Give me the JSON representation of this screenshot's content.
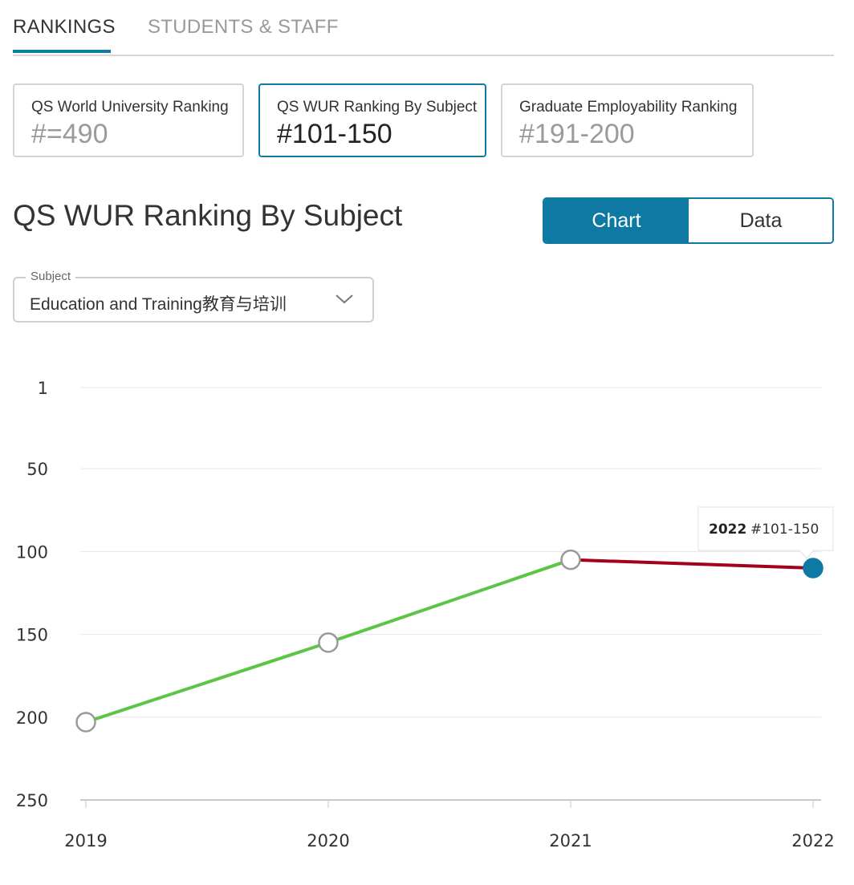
{
  "tabs": [
    {
      "label": "RANKINGS"
    },
    {
      "label": "STUDENTS & STAFF"
    }
  ],
  "cards": [
    {
      "label": "QS World University Ranking",
      "value": "#=490"
    },
    {
      "label": "QS WUR Ranking By Subject",
      "value": "#101-150"
    },
    {
      "label": "Graduate Employability Ranking",
      "value": "#191-200"
    }
  ],
  "section_title": "QS WUR Ranking By Subject",
  "view_toggle": {
    "chart_label": "Chart",
    "data_label": "Data"
  },
  "subject_select": {
    "legend": "Subject",
    "value": "Education and Training教育与培训"
  },
  "colors": {
    "accent": "#0e7aa3",
    "rise": "#5cc545",
    "decline": "#a3001e",
    "marker_stroke": "#9a9a9a"
  },
  "chart_data": {
    "type": "line",
    "x": [
      "2019",
      "2020",
      "2021",
      "2022"
    ],
    "ranks": [
      203,
      155,
      105,
      110
    ],
    "segment_colors": [
      "#5cc545",
      "#5cc545",
      "#a3001e"
    ],
    "y_ticks": [
      1,
      50,
      100,
      150,
      200,
      250
    ],
    "ylim": [
      1,
      250
    ],
    "y_inverted": true,
    "grid": true,
    "tooltip": {
      "year": "2022",
      "value": "#101-150"
    }
  }
}
